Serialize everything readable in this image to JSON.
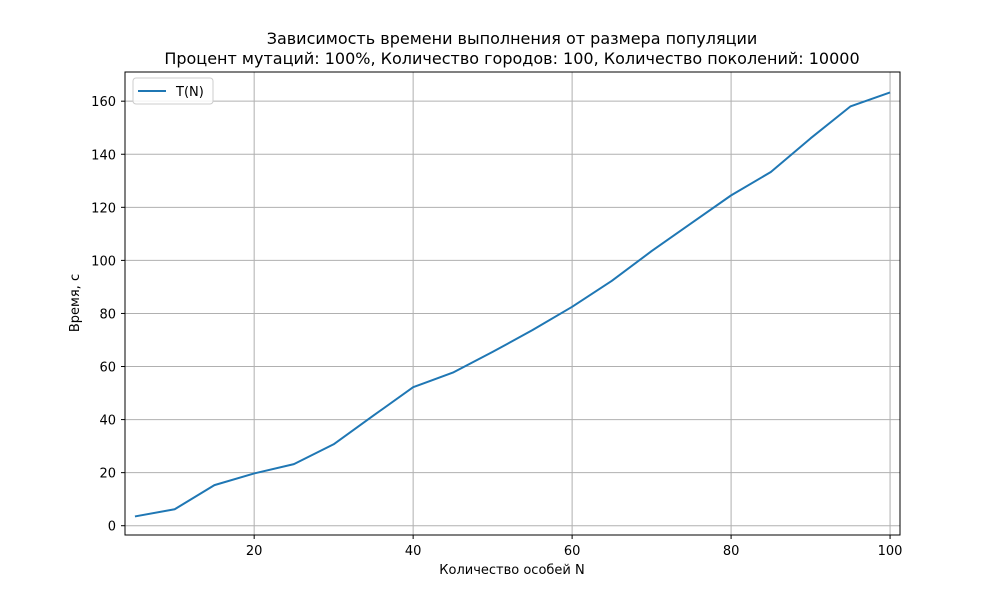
{
  "chart_data": {
    "type": "line",
    "title": "Зависимость времени выполнения от размера популяции",
    "subtitle": "Процент мутаций: 100%, Количество городов: 100, Количество поколений: 10000",
    "xlabel": "Количество особей N",
    "ylabel": "Время, с",
    "xlim": [
      3.75,
      101.25
    ],
    "ylim": [
      -3.5,
      171
    ],
    "xticks": [
      20,
      40,
      60,
      80,
      100
    ],
    "yticks": [
      0,
      20,
      40,
      60,
      80,
      100,
      120,
      140,
      160
    ],
    "grid": true,
    "legend_position": "top-left",
    "series": [
      {
        "name": "T(N)",
        "color": "#1f77b4",
        "x": [
          5,
          10,
          15,
          20,
          25,
          30,
          35,
          40,
          45,
          50,
          55,
          60,
          65,
          70,
          75,
          80,
          85,
          90,
          95,
          100
        ],
        "y": [
          3.5,
          6.2,
          15.3,
          19.7,
          23.2,
          30.7,
          41.5,
          52.2,
          57.7,
          65.5,
          73.7,
          82.5,
          92.3,
          103.5,
          114.0,
          124.5,
          133.3,
          146.0,
          158.0,
          163.3
        ]
      }
    ]
  }
}
